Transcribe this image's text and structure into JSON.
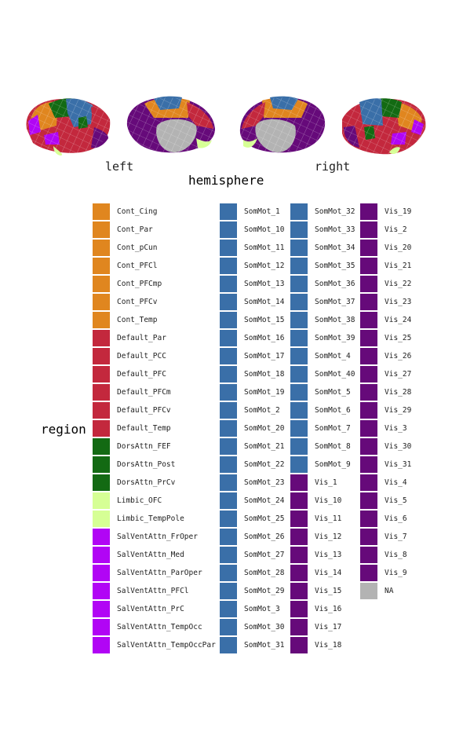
{
  "hemisphere_title": "hemisphere",
  "left_label": "left",
  "right_label": "right",
  "legend_title": "region",
  "colors": {
    "Cont": "#e0861f",
    "Default": "#c3283d",
    "DorsAttn": "#136a13",
    "Limbic": "#d6ff95",
    "SalVentAttn": "#b105f5",
    "SomMot": "#3a6fa8",
    "Vis": "#660a7a",
    "NA": "#b3b3b3"
  },
  "legend_columns": [
    [
      "Cont_Cing",
      "Cont_Par",
      "Cont_pCun",
      "Cont_PFCl",
      "Cont_PFCmp",
      "Cont_PFCv",
      "Cont_Temp",
      "Default_Par",
      "Default_PCC",
      "Default_PFC",
      "Default_PFCm",
      "Default_PFCv",
      "Default_Temp",
      "DorsAttn_FEF",
      "DorsAttn_Post",
      "DorsAttn_PrCv",
      "Limbic_OFC",
      "Limbic_TempPole",
      "SalVentAttn_FrOper",
      "SalVentAttn_Med",
      "SalVentAttn_ParOper",
      "SalVentAttn_PFCl",
      "SalVentAttn_PrC",
      "SalVentAttn_TempOcc",
      "SalVentAttn_TempOccPar"
    ],
    [
      "SomMot_1",
      "SomMot_10",
      "SomMot_11",
      "SomMot_12",
      "SomMot_13",
      "SomMot_14",
      "SomMot_15",
      "SomMot_16",
      "SomMot_17",
      "SomMot_18",
      "SomMot_19",
      "SomMot_2",
      "SomMot_20",
      "SomMot_21",
      "SomMot_22",
      "SomMot_23",
      "SomMot_24",
      "SomMot_25",
      "SomMot_26",
      "SomMot_27",
      "SomMot_28",
      "SomMot_29",
      "SomMot_3",
      "SomMot_30",
      "SomMot_31"
    ],
    [
      "SomMot_32",
      "SomMot_33",
      "SomMot_34",
      "SomMot_35",
      "SomMot_36",
      "SomMot_37",
      "SomMot_38",
      "SomMot_39",
      "SomMot_4",
      "SomMot_40",
      "SomMot_5",
      "SomMot_6",
      "SomMot_7",
      "SomMot_8",
      "SomMot_9",
      "Vis_1",
      "Vis_10",
      "Vis_11",
      "Vis_12",
      "Vis_13",
      "Vis_14",
      "Vis_15",
      "Vis_16",
      "Vis_17",
      "Vis_18"
    ],
    [
      "Vis_19",
      "Vis_2",
      "Vis_20",
      "Vis_21",
      "Vis_22",
      "Vis_23",
      "Vis_24",
      "Vis_25",
      "Vis_26",
      "Vis_27",
      "Vis_28",
      "Vis_29",
      "Vis_3",
      "Vis_30",
      "Vis_31",
      "Vis_4",
      "Vis_5",
      "Vis_6",
      "Vis_7",
      "Vis_8",
      "Vis_9",
      "NA"
    ]
  ]
}
